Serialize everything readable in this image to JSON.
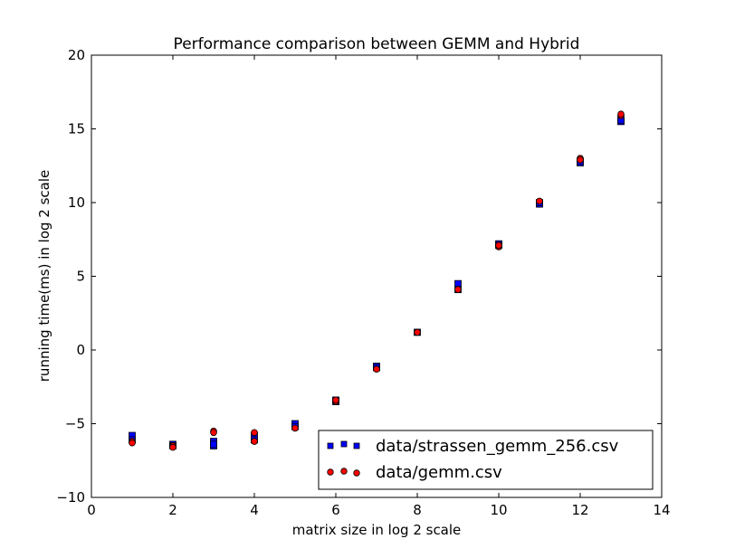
{
  "chart_data": {
    "type": "scatter",
    "title": "Performance comparison between GEMM and Hybrid",
    "xlabel": "matrix size in log 2 scale",
    "ylabel": "running time(ms) in log 2 scale",
    "xlim": [
      0,
      14
    ],
    "ylim": [
      -10,
      20
    ],
    "xticks": [
      0,
      2,
      4,
      6,
      8,
      10,
      12,
      14
    ],
    "yticks": [
      -10,
      -5,
      0,
      5,
      10,
      15,
      20
    ],
    "grid": false,
    "legend_position": "lower-right",
    "series": [
      {
        "name": "data/strassen_gemm_256.csv",
        "marker": "square",
        "color": "#0000ff",
        "points": [
          [
            1,
            -5.8
          ],
          [
            1,
            -6.1
          ],
          [
            2,
            -6.4
          ],
          [
            2,
            -6.5
          ],
          [
            3,
            -6.2
          ],
          [
            3,
            -6.5
          ],
          [
            3,
            -6.4
          ],
          [
            4,
            -5.8
          ],
          [
            4,
            -6.1
          ],
          [
            5,
            -5.0
          ],
          [
            5,
            -5.2
          ],
          [
            6,
            -3.4
          ],
          [
            6,
            -3.5
          ],
          [
            7,
            -1.1
          ],
          [
            7,
            -1.2
          ],
          [
            8,
            1.2
          ],
          [
            9,
            4.5
          ],
          [
            9,
            4.1
          ],
          [
            10,
            7.2
          ],
          [
            10,
            7.1
          ],
          [
            11,
            9.9
          ],
          [
            11,
            10.0
          ],
          [
            12,
            12.7
          ],
          [
            12,
            12.8
          ],
          [
            13,
            15.5
          ],
          [
            13,
            15.6
          ]
        ]
      },
      {
        "name": "data/gemm.csv",
        "marker": "circle",
        "color": "#ff0000",
        "points": [
          [
            1,
            -6.2
          ],
          [
            1,
            -6.3
          ],
          [
            2,
            -6.5
          ],
          [
            2,
            -6.6
          ],
          [
            3,
            -5.5
          ],
          [
            3,
            -5.6
          ],
          [
            4,
            -5.6
          ],
          [
            4,
            -6.2
          ],
          [
            5,
            -5.3
          ],
          [
            6,
            -3.5
          ],
          [
            6,
            -3.4
          ],
          [
            7,
            -1.3
          ],
          [
            8,
            1.2
          ],
          [
            9,
            4.1
          ],
          [
            10,
            7.0
          ],
          [
            10,
            7.1
          ],
          [
            11,
            10.1
          ],
          [
            12,
            13.0
          ],
          [
            12,
            12.9
          ],
          [
            13,
            15.9
          ],
          [
            13,
            16.0
          ]
        ]
      }
    ]
  }
}
